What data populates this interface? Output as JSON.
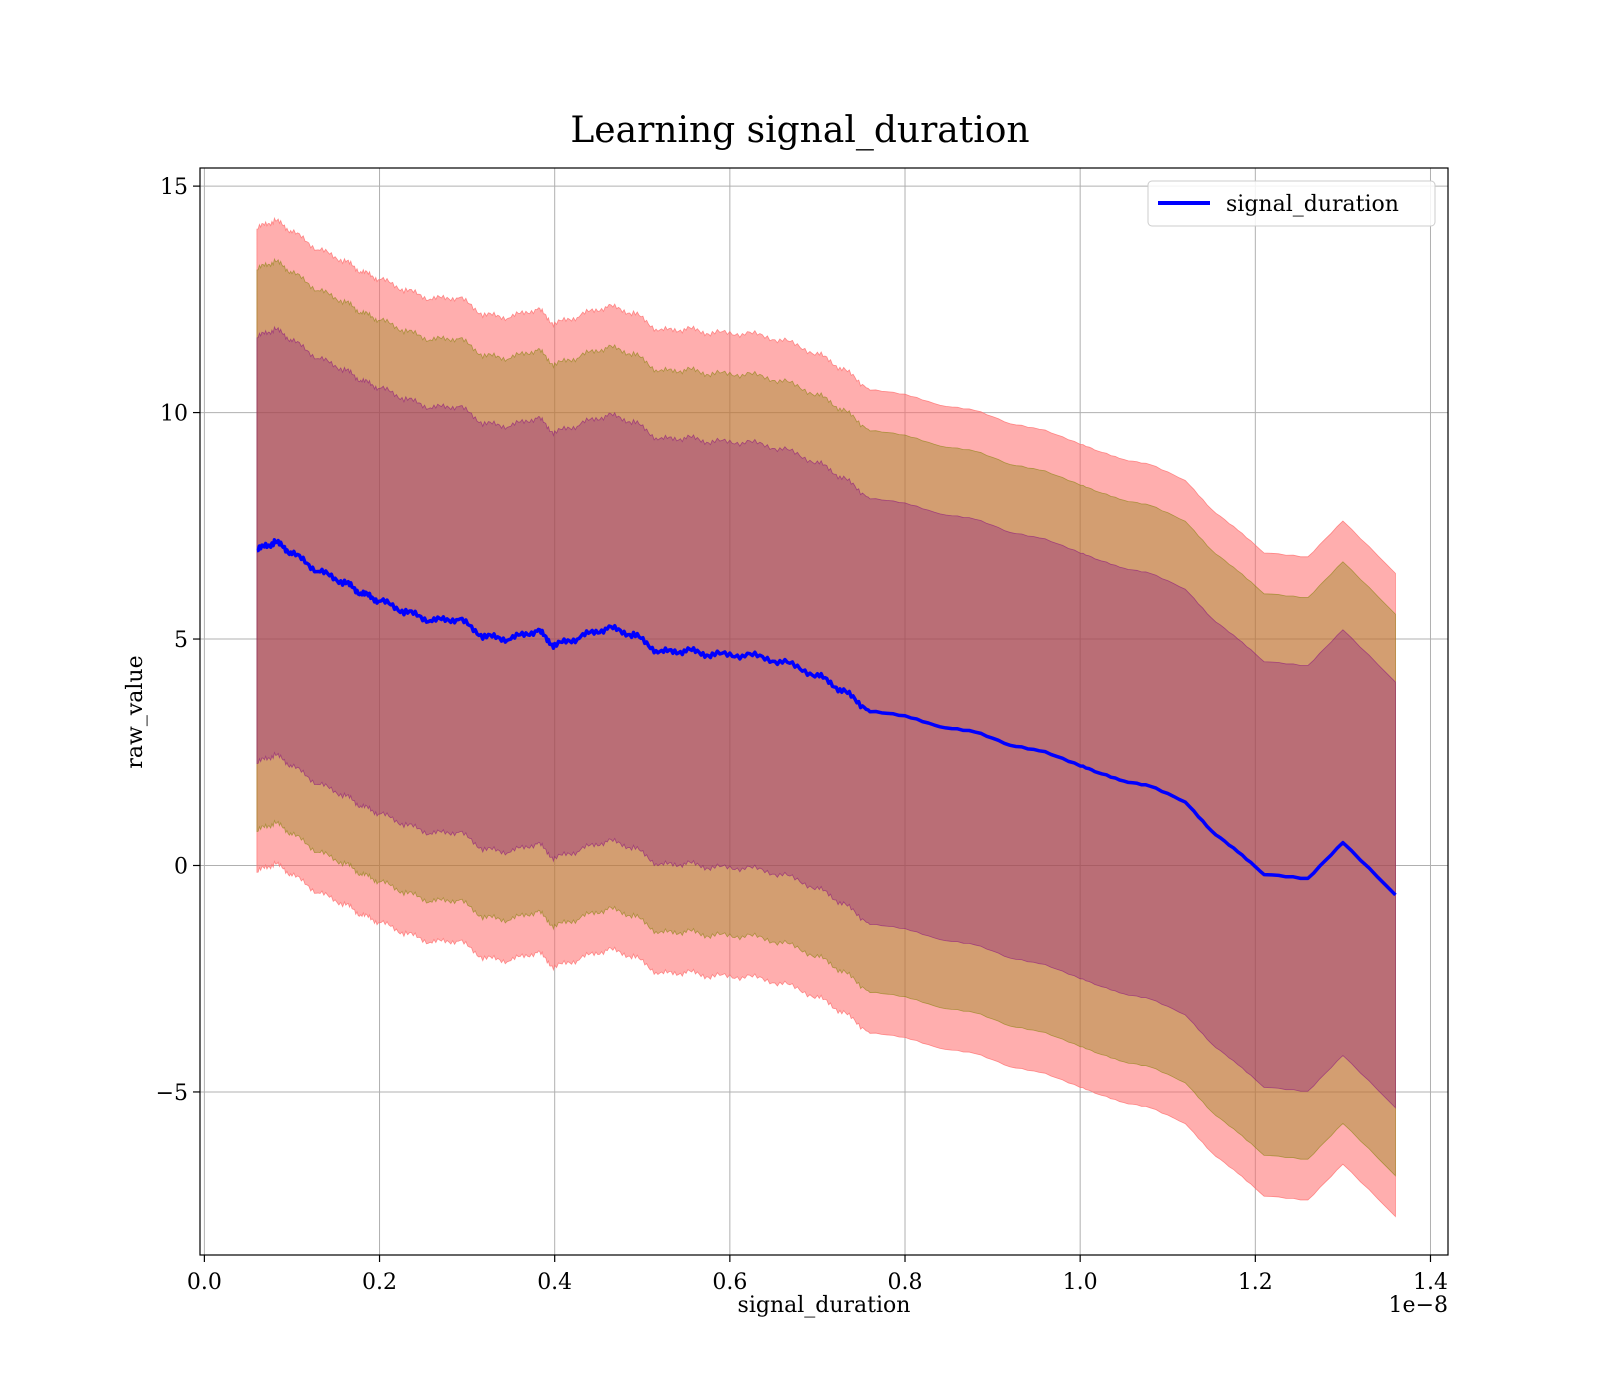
{
  "chart_data": {
    "type": "line",
    "title": "Learning signal_duration",
    "xlabel": "signal_duration",
    "ylabel": "raw_value",
    "x_scale_label": "1e−8",
    "xlim": [
      -0.005,
      1.42
    ],
    "ylim": [
      -8.6,
      15.4
    ],
    "x_ticks": [
      0.0,
      0.2,
      0.4,
      0.6,
      0.8,
      1.0,
      1.2,
      1.4
    ],
    "x_tick_labels": [
      "0.0",
      "0.2",
      "0.4",
      "0.6",
      "0.8",
      "1.0",
      "1.2",
      "1.4"
    ],
    "y_ticks": [
      -5,
      0,
      5,
      10,
      15
    ],
    "y_tick_labels": [
      "−5",
      "0",
      "5",
      "10",
      "15"
    ],
    "grid": true,
    "legend_position": "top-right",
    "series": [
      {
        "name": "signal_duration",
        "color": "#0000ff",
        "x": [
          0.06,
          0.08,
          0.1,
          0.13,
          0.16,
          0.18,
          0.2,
          0.23,
          0.26,
          0.29,
          0.32,
          0.35,
          0.38,
          0.4,
          0.43,
          0.46,
          0.49,
          0.52,
          0.55,
          0.58,
          0.62,
          0.66,
          0.7,
          0.73,
          0.76,
          0.8,
          0.84,
          0.88,
          0.92,
          0.96,
          1.0,
          1.02,
          1.05,
          1.08,
          1.12,
          1.15,
          1.18,
          1.21,
          1.26,
          1.3,
          1.36
        ],
        "y": [
          6.95,
          7.15,
          6.9,
          6.5,
          6.25,
          6.0,
          5.85,
          5.6,
          5.4,
          5.45,
          5.05,
          5.0,
          5.2,
          4.85,
          5.05,
          5.25,
          5.1,
          4.7,
          4.75,
          4.65,
          4.65,
          4.5,
          4.2,
          3.85,
          3.4,
          3.3,
          3.05,
          2.95,
          2.65,
          2.5,
          2.2,
          2.05,
          1.85,
          1.75,
          1.4,
          0.75,
          0.3,
          -0.2,
          -0.3,
          0.5,
          -0.65
        ]
      }
    ],
    "bands": [
      {
        "color": "#ff6b6b",
        "opacity": 0.55,
        "offset_upper": 7.1,
        "offset_lower": -7.1
      },
      {
        "color": "#808000",
        "opacity": 0.35,
        "offset_upper": 6.2,
        "offset_lower": -6.2
      },
      {
        "color": "#800080",
        "opacity": 0.3,
        "offset_upper": 4.7,
        "offset_lower": -4.7
      }
    ]
  }
}
